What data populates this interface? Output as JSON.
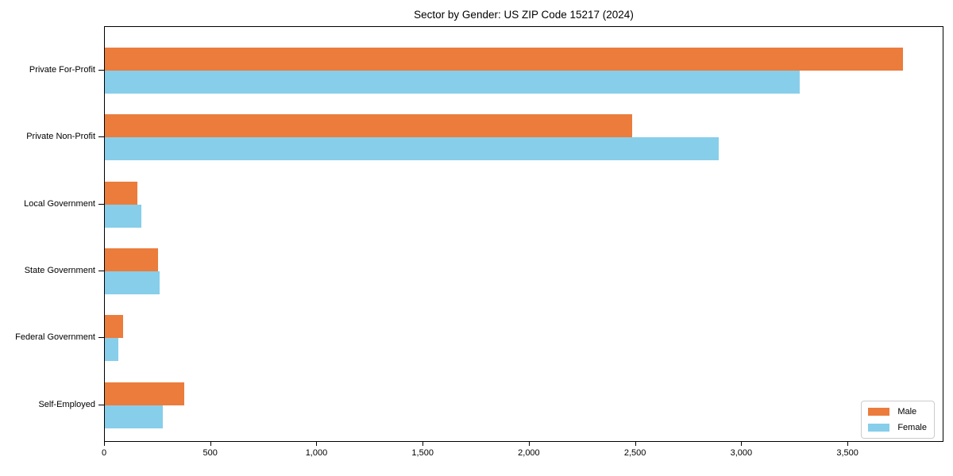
{
  "chart_data": {
    "type": "bar",
    "orientation": "horizontal",
    "title": "Sector by Gender: US ZIP Code 15217 (2024)",
    "categories": [
      "Private For-Profit",
      "Private Non-Profit",
      "Local Government",
      "State Government",
      "Federal Government",
      "Self-Employed"
    ],
    "series": [
      {
        "name": "Male",
        "color": "#EB7C3C",
        "values": [
          3757,
          2483,
          153,
          250,
          86,
          374
        ]
      },
      {
        "name": "Female",
        "color": "#87CEEB",
        "values": [
          3272,
          2891,
          172,
          258,
          64,
          273
        ]
      }
    ],
    "xlabel": "",
    "ylabel": "",
    "xlim": [
      0,
      3952
    ],
    "xticks": [
      0,
      500,
      1000,
      1500,
      2000,
      2500,
      3000,
      3500
    ],
    "xtick_labels": [
      "0",
      "500",
      "1,000",
      "1,500",
      "2,000",
      "2,500",
      "3,000",
      "3,500"
    ],
    "grid": false,
    "legend": {
      "position": "lower-right",
      "labels": [
        "Male",
        "Female"
      ]
    }
  }
}
